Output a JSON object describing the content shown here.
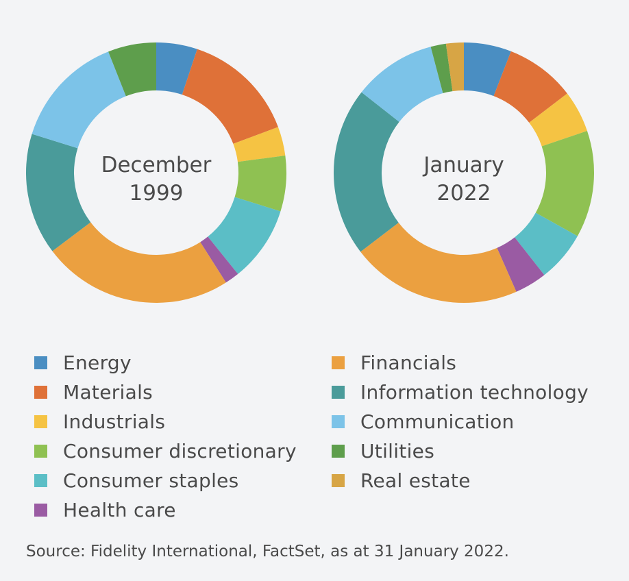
{
  "legend": {
    "left": [
      {
        "label": "Energy",
        "color": "#4a8ec2"
      },
      {
        "label": "Materials",
        "color": "#df7138"
      },
      {
        "label": "Industrials",
        "color": "#f5c343"
      },
      {
        "label": "Consumer discretionary",
        "color": "#8fc152"
      },
      {
        "label": "Consumer staples",
        "color": "#5bbec6"
      },
      {
        "label": "Health care",
        "color": "#9a5ba3"
      }
    ],
    "right": [
      {
        "label": "Financials",
        "color": "#eba040"
      },
      {
        "label": "Information technology",
        "color": "#4a9b9a"
      },
      {
        "label": "Communication",
        "color": "#7cc3e8"
      },
      {
        "label": "Utilities",
        "color": "#5e9e4c"
      },
      {
        "label": "Real estate",
        "color": "#d7a545"
      }
    ]
  },
  "source": "Source: Fidelity International, FactSet, as at 31 January 2022.",
  "chart_data": [
    {
      "type": "pie",
      "donut": true,
      "center_label": [
        "December",
        "1999"
      ],
      "categories": [
        "Energy",
        "Materials",
        "Industrials",
        "Consumer discretionary",
        "Consumer staples",
        "Health care",
        "Financials",
        "Information technology",
        "Communication",
        "Utilities"
      ],
      "values": [
        5.1,
        14.2,
        3.6,
        6.9,
        9.4,
        1.8,
        23.7,
        15.1,
        14.2,
        6.0
      ],
      "colors": [
        "#4a8ec2",
        "#df7138",
        "#f5c343",
        "#8fc152",
        "#5bbec6",
        "#9a5ba3",
        "#eba040",
        "#4a9b9a",
        "#7cc3e8",
        "#5e9e4c"
      ]
    },
    {
      "type": "pie",
      "donut": true,
      "center_label": [
        "January",
        "2022"
      ],
      "categories": [
        "Energy",
        "Materials",
        "Industrials",
        "Consumer discretionary",
        "Consumer staples",
        "Health care",
        "Financials",
        "Information technology",
        "Communication",
        "Utilities",
        "Real estate"
      ],
      "values": [
        5.9,
        8.7,
        5.2,
        13.3,
        6.3,
        4.0,
        21.2,
        21.0,
        10.3,
        1.9,
        2.2
      ],
      "colors": [
        "#4a8ec2",
        "#df7138",
        "#f5c343",
        "#8fc152",
        "#5bbec6",
        "#9a5ba3",
        "#eba040",
        "#4a9b9a",
        "#7cc3e8",
        "#5e9e4c",
        "#d7a545"
      ]
    }
  ]
}
